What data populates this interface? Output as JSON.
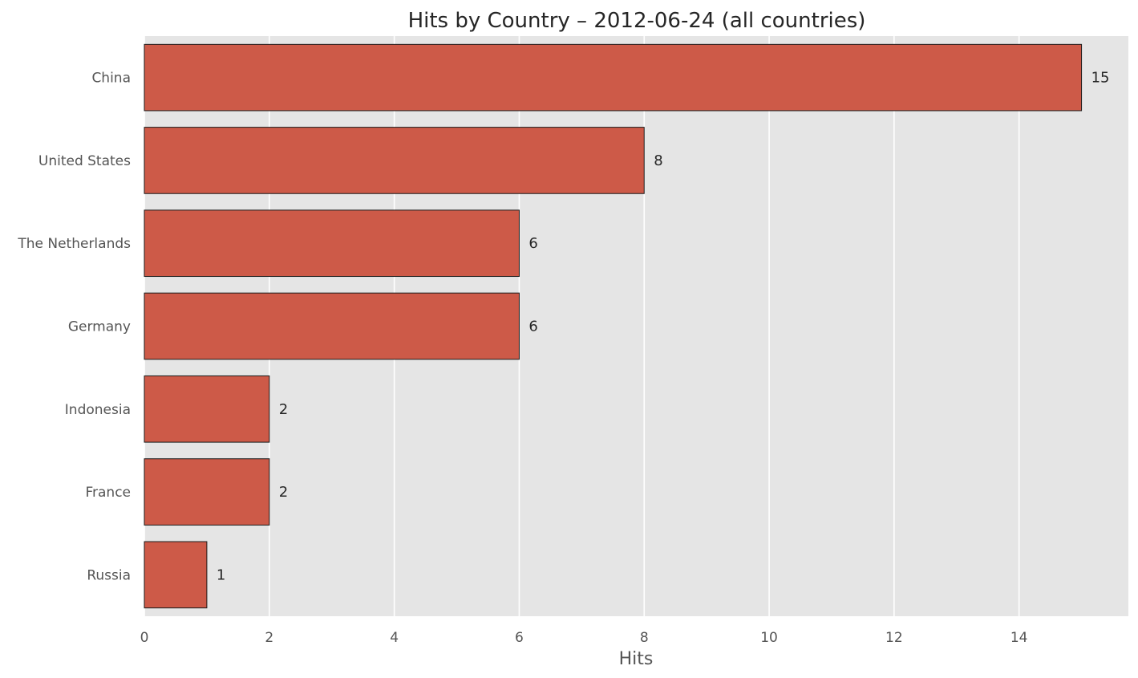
{
  "chart_data": {
    "type": "bar",
    "orientation": "horizontal",
    "title": "Hits by Country – 2012-06-24 (all countries)",
    "xlabel": "Hits",
    "ylabel": "",
    "categories": [
      "China",
      "United States",
      "The Netherlands",
      "Germany",
      "Indonesia",
      "France",
      "Russia"
    ],
    "values": [
      15,
      8,
      6,
      6,
      2,
      2,
      1
    ],
    "data_labels": [
      "15",
      "8",
      "6",
      "6",
      "2",
      "2",
      "1"
    ],
    "xlim": [
      0,
      15.75
    ],
    "xticks": [
      0,
      2,
      4,
      6,
      8,
      10,
      12,
      14
    ],
    "grid": true,
    "legend": "none",
    "colors": {
      "bar": "#cd5a48",
      "bar_edge": "#1a1a1a",
      "plot_background": "#e5e5e5",
      "grid": "#ffffff"
    }
  }
}
